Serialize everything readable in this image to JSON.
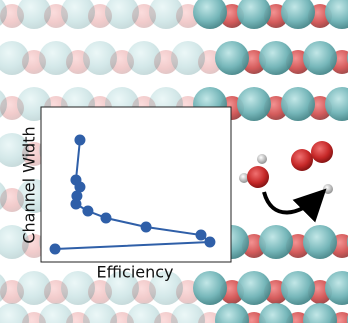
{
  "chart_data": {
    "type": "line",
    "x_label": "Efficiency",
    "y_label": "Channel Width",
    "x": [
      0.205,
      0.184,
      0.205,
      0.189,
      0.184,
      0.247,
      0.342,
      0.553,
      0.842,
      0.889,
      0.074
    ],
    "values": [
      0.787,
      0.529,
      0.484,
      0.426,
      0.374,
      0.329,
      0.284,
      0.226,
      0.174,
      0.129,
      0.084
    ],
    "color": "#2f5fa8",
    "xlim": [
      0,
      1
    ],
    "ylim": [
      0,
      1
    ]
  }
}
